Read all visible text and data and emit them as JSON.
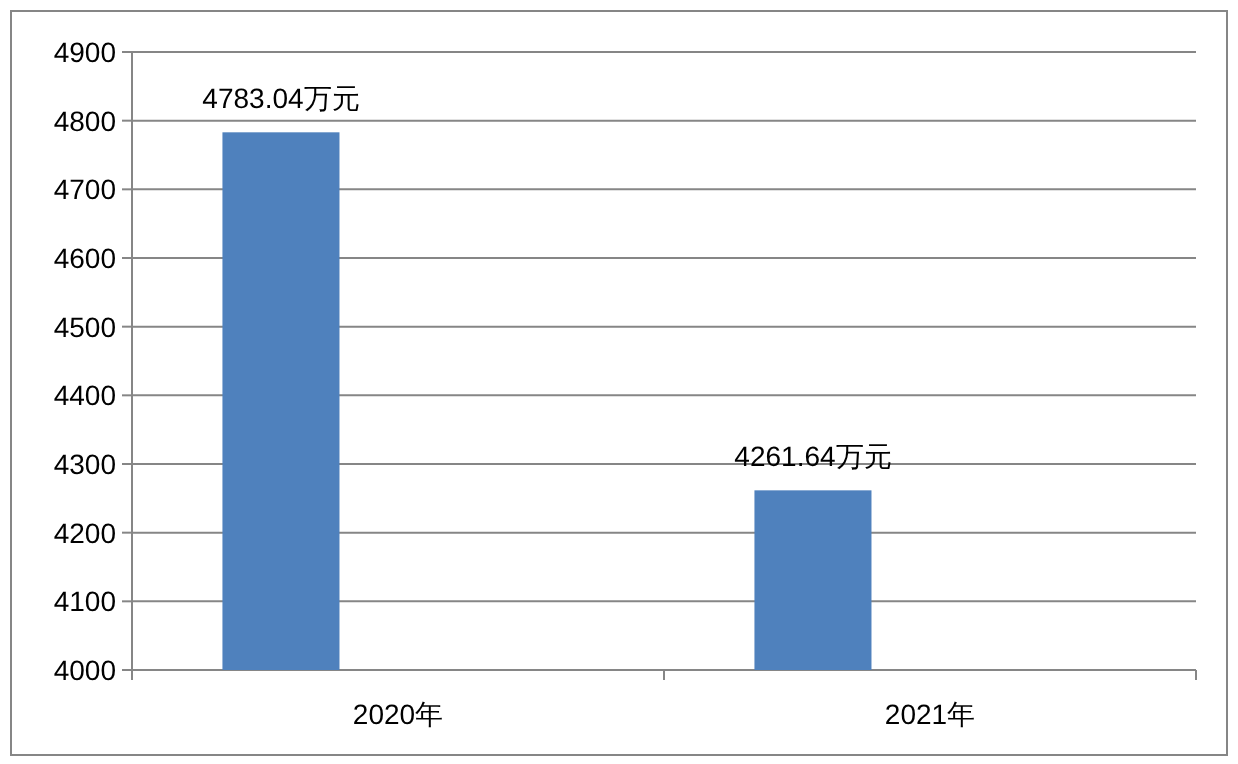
{
  "chart_data": {
    "type": "bar",
    "categories": [
      "2020年",
      "2021年"
    ],
    "values": [
      4783.04,
      4261.64
    ],
    "value_labels": [
      "4783.04万元",
      "4261.64万元"
    ],
    "color": "#4f81bd",
    "ylim": [
      4000,
      4900
    ],
    "yticks": [
      4000,
      4100,
      4200,
      4300,
      4400,
      4500,
      4600,
      4700,
      4800,
      4900
    ],
    "grid": "y"
  }
}
